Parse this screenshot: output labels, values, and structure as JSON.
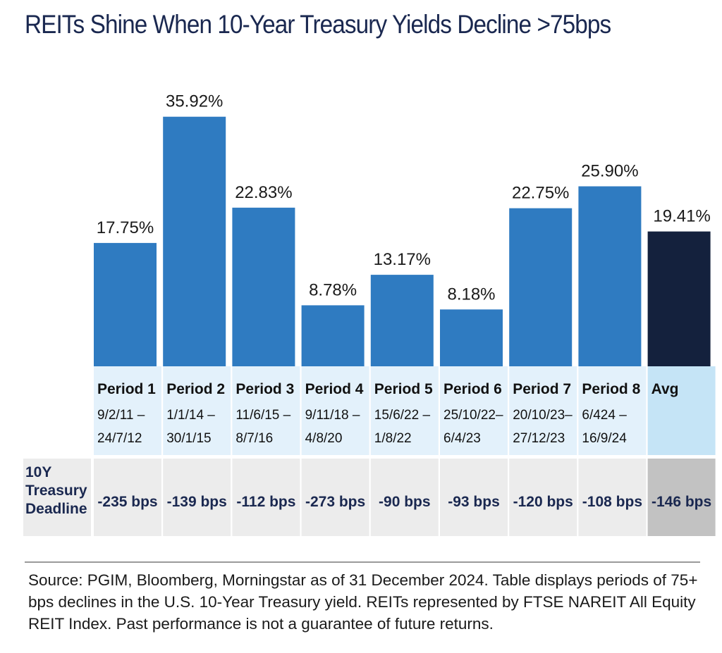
{
  "title": "REITs Shine When 10-Year Treasury Yields Decline >75bps",
  "chart_data": {
    "type": "bar",
    "title": "REITs Shine When 10-Year Treasury Yields Decline >75bps",
    "categories": [
      "Period 1",
      "Period 2",
      "Period 3",
      "Period 4",
      "Period 5",
      "Period 6",
      "Period 7",
      "Period 8",
      "Avg"
    ],
    "values": [
      17.75,
      35.92,
      22.83,
      8.78,
      13.17,
      8.18,
      22.75,
      25.9,
      19.41
    ],
    "value_labels": [
      "17.75%",
      "35.92%",
      "22.83%",
      "8.78%",
      "13.17%",
      "8.18%",
      "22.75%",
      "25.90%",
      "19.41%"
    ],
    "date_ranges": [
      [
        "9/2/11 –",
        "24/7/12"
      ],
      [
        "1/1/14 –",
        "30/1/15"
      ],
      [
        "11/6/15 –",
        "8/7/16"
      ],
      [
        "9/11/18 –",
        "4/8/20"
      ],
      [
        "15/6/22 –",
        "1/8/22"
      ],
      [
        "25/10/22–",
        "6/4/23"
      ],
      [
        "20/10/23–",
        "27/12/23"
      ],
      [
        "6/424 –",
        "16/9/24"
      ],
      [
        "",
        ""
      ]
    ],
    "treasury_decline_label": [
      "10Y",
      "Treasury",
      "Deadline"
    ],
    "treasury_decline": [
      "-235 bps",
      "-139 bps",
      "-112 bps",
      "-273 bps",
      "-90 bps",
      "-93 bps",
      "-120 bps",
      "-108 bps",
      "-146 bps"
    ],
    "ylim": [
      0,
      36.5
    ],
    "xlabel": "",
    "ylabel": "",
    "colors": {
      "bar": "#2f7bc1",
      "avg_bar": "#14213d",
      "period_cell": "#e3f1fb",
      "avg_period_cell": "#c5e4f6",
      "bps_cell": "#ececec",
      "avg_bps_cell": "#c2c2c2",
      "label_cell": "#ececec"
    }
  },
  "source": "Source: PGIM, Bloomberg, Morningstar as of 31 December 2024. Table displays periods of 75+ bps declines in the U.S. 10-Year Treasury yield. REITs represented by FTSE NAREIT All Equity REIT Index. Past performance is not a guarantee of future returns."
}
